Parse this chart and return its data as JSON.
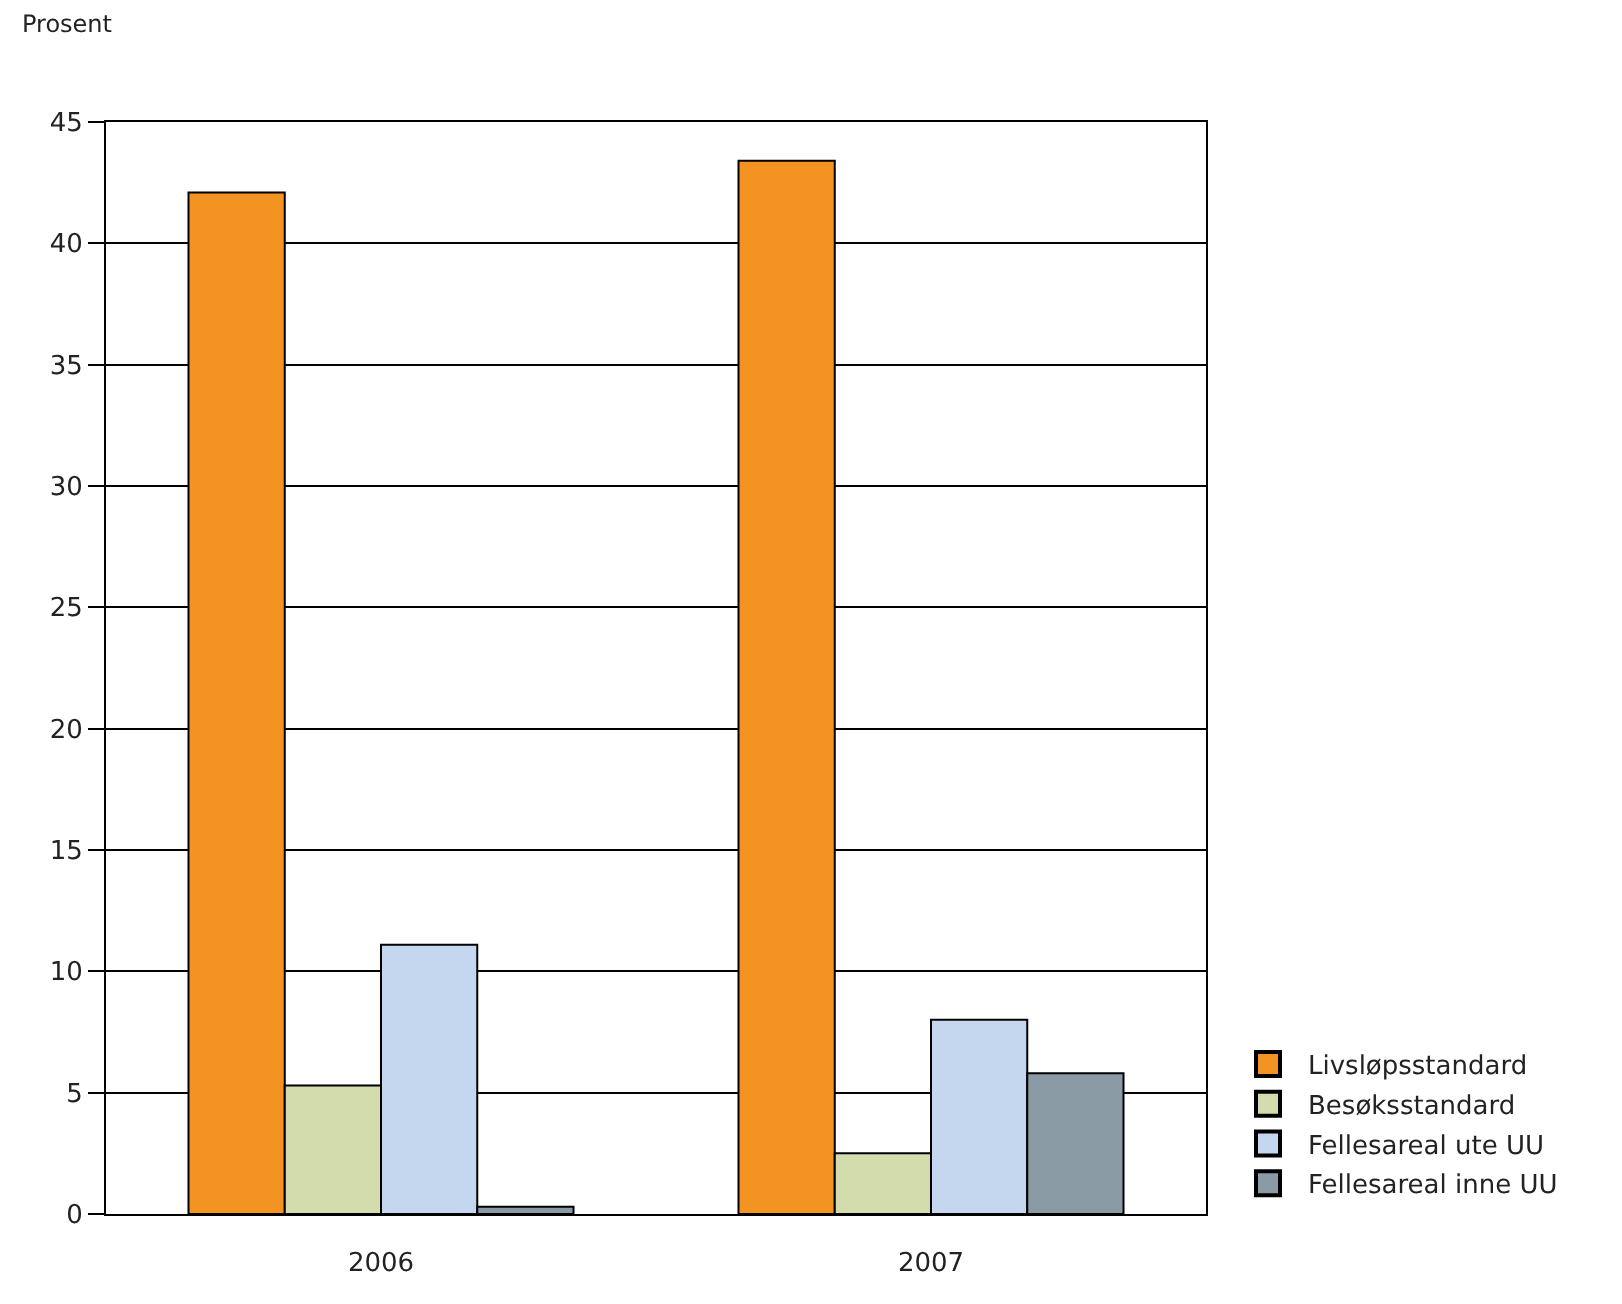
{
  "chart_data": {
    "type": "bar",
    "ylabel": "Prosent",
    "categories": [
      "2006",
      "2007"
    ],
    "series": [
      {
        "name": "Livsløpsstandard",
        "color": "#f39322",
        "values": [
          42.1,
          43.4
        ]
      },
      {
        "name": "Besøksstandard",
        "color": "#d3dcac",
        "values": [
          5.3,
          2.5
        ]
      },
      {
        "name": "Fellesareal ute UU",
        "color": "#c5d7ef",
        "values": [
          11.1,
          8.0
        ]
      },
      {
        "name": "Fellesareal inne UU",
        "color": "#8a9ba5",
        "values": [
          0.3,
          5.8
        ]
      }
    ],
    "ylim": [
      0,
      45
    ],
    "yticks": [
      0,
      5,
      10,
      15,
      20,
      25,
      30,
      35,
      40,
      45
    ],
    "grid": "y",
    "legend": "right"
  }
}
